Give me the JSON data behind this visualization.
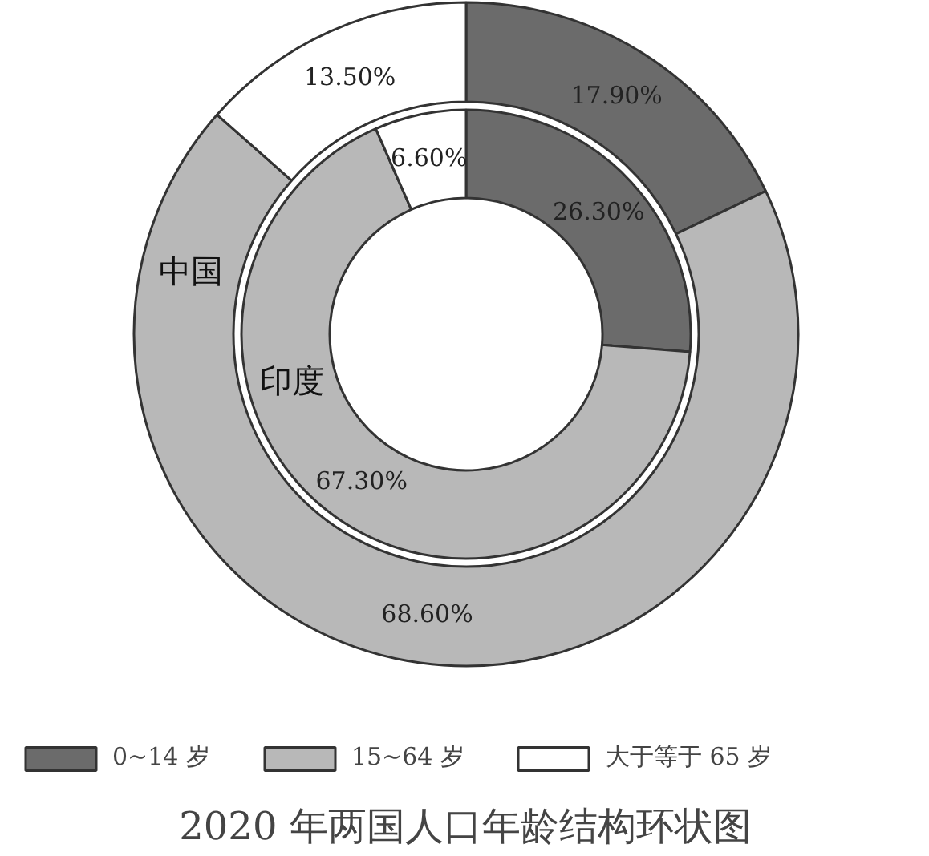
{
  "chart_data": {
    "type": "donut",
    "title": "2020 年两国人口年龄结构环状图",
    "categories": [
      "0~14 岁",
      "15~64 岁",
      "大于等于 65 岁"
    ],
    "colors": [
      "#6b6b6b",
      "#b8b8b8",
      "#ffffff"
    ],
    "series": [
      {
        "name": "中国",
        "values": [
          17.9,
          68.6,
          13.5
        ],
        "value_labels": [
          "17.90%",
          "68.60%",
          "13.50%"
        ]
      },
      {
        "name": "印度",
        "values": [
          26.3,
          67.3,
          6.6
        ],
        "value_labels": [
          "26.30%",
          "67.30%",
          "6.60%"
        ]
      }
    ],
    "legend": "bottom"
  }
}
